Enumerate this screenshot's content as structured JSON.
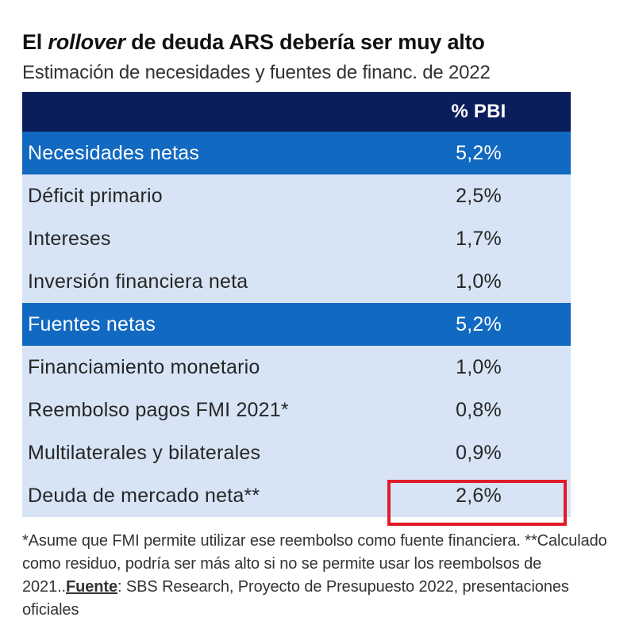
{
  "title": {
    "prefix": "El ",
    "italic": "rollover",
    "suffix": " de deuda ARS debería ser muy alto"
  },
  "subtitle": "Estimación de necesidades y fuentes de financ. de 2022",
  "chart_data": {
    "type": "table",
    "columns": [
      "",
      "% PBI"
    ],
    "rows": [
      {
        "label": "Necesidades netas",
        "value": "5,2%",
        "kind": "section"
      },
      {
        "label": "Déficit primario",
        "value": "2,5%",
        "kind": "item"
      },
      {
        "label": "Intereses",
        "value": "1,7%",
        "kind": "item"
      },
      {
        "label": "Inversión financiera neta",
        "value": "1,0%",
        "kind": "item"
      },
      {
        "label": "Fuentes netas",
        "value": "5,2%",
        "kind": "section"
      },
      {
        "label": "Financiamiento monetario",
        "value": "1,0%",
        "kind": "item"
      },
      {
        "label": "Reembolso pagos FMI 2021*",
        "value": "0,8%",
        "kind": "item"
      },
      {
        "label": "Multilaterales y bilaterales",
        "value": "0,9%",
        "kind": "item"
      },
      {
        "label": "Deuda de mercado neta**",
        "value": "2,6%",
        "kind": "item"
      }
    ],
    "highlighted_row": "Deuda de mercado neta**"
  },
  "footnote": {
    "text1": "*Asume que FMI permite utilizar ese reembolso como fuente financiera. **Calculado como residuo, podría ser más alto si no se permite usar los reembolsos de 2021..",
    "source_label": "Fuente",
    "text2": ": SBS Research, Proyecto de Presupuesto 2022, presentaciones oficiales"
  },
  "colors": {
    "header_bg": "#0b1e5c",
    "section_bg": "#1169c1",
    "item_bg": "#d6e4f5",
    "highlight_border": "#e21b2a"
  }
}
